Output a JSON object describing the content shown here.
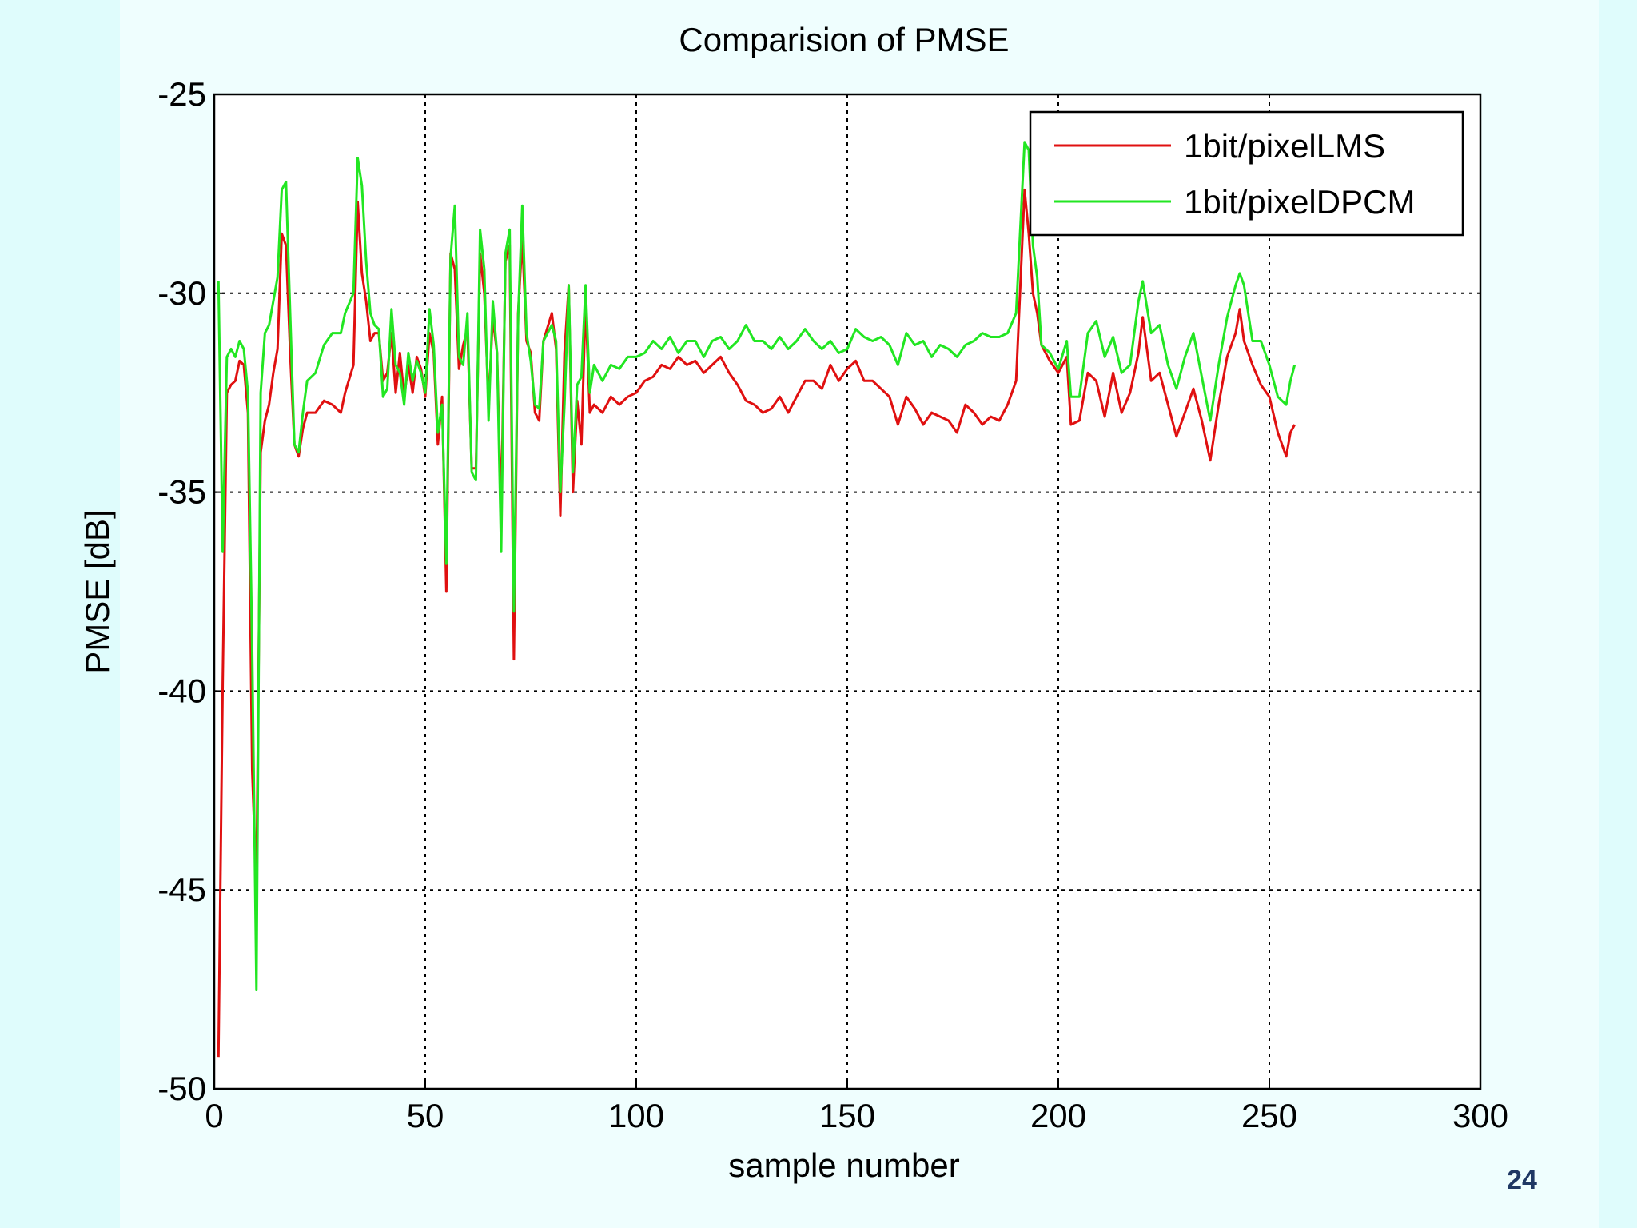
{
  "page_number": "24",
  "chart_data": {
    "type": "line",
    "title": "Comparision of PMSE",
    "xlabel": "sample number",
    "ylabel": "PMSE [dB]",
    "xlim": [
      0,
      300
    ],
    "ylim": [
      -50,
      -25
    ],
    "xticks": [
      0,
      50,
      100,
      150,
      200,
      250,
      300
    ],
    "yticks": [
      -50,
      -45,
      -40,
      -35,
      -30,
      -25
    ],
    "grid": true,
    "legend": "upper right",
    "x": [
      1,
      2,
      3,
      4,
      5,
      6,
      7,
      8,
      9,
      10,
      11,
      12,
      13,
      14,
      15,
      16,
      17,
      18,
      19,
      20,
      21,
      22,
      24,
      26,
      28,
      30,
      31,
      33,
      34,
      35,
      36,
      37,
      38,
      39,
      40,
      41,
      42,
      43,
      44,
      45,
      46,
      47,
      48,
      49,
      50,
      51,
      52,
      53,
      54,
      55,
      56,
      57,
      58,
      59,
      60,
      61,
      62,
      63,
      64,
      65,
      66,
      67,
      68,
      69,
      70,
      71,
      72,
      73,
      74,
      75,
      76,
      77,
      78,
      80,
      81,
      82,
      83,
      84,
      85,
      86,
      87,
      88,
      89,
      90,
      92,
      94,
      96,
      98,
      100,
      102,
      104,
      106,
      108,
      110,
      112,
      114,
      116,
      118,
      120,
      122,
      124,
      126,
      128,
      130,
      132,
      134,
      136,
      138,
      140,
      142,
      144,
      146,
      148,
      150,
      152,
      154,
      156,
      158,
      160,
      162,
      164,
      166,
      168,
      170,
      172,
      174,
      176,
      178,
      180,
      182,
      184,
      186,
      188,
      190,
      192,
      193,
      194,
      195,
      196,
      198,
      200,
      202,
      203,
      205,
      207,
      209,
      211,
      213,
      215,
      217,
      219,
      220,
      222,
      224,
      226,
      228,
      230,
      232,
      234,
      236,
      238,
      240,
      242,
      243,
      244,
      246,
      248,
      250,
      252,
      254,
      255,
      256
    ],
    "series": [
      {
        "name": "1bit/pixelLMS",
        "color": "#e01010",
        "values": [
          -49.2,
          -39.8,
          -32.5,
          -32.3,
          -32.2,
          -31.7,
          -31.8,
          -33,
          -42,
          -45,
          -34,
          -33.2,
          -32.8,
          -32,
          -31.4,
          -28.5,
          -28.8,
          -31.5,
          -33.8,
          -34.1,
          -33.4,
          -33,
          -33,
          -32.7,
          -32.8,
          -33,
          -32.5,
          -31.8,
          -27.7,
          -29.5,
          -30.2,
          -31.2,
          -31,
          -31,
          -32.2,
          -32,
          -31,
          -32.5,
          -31.5,
          -32.6,
          -31.8,
          -32.5,
          -31.6,
          -31.9,
          -32.6,
          -31,
          -31.5,
          -33.8,
          -32.6,
          -37.5,
          -29,
          -29.4,
          -31.9,
          -31.3,
          -30.9,
          -34.4,
          -34.4,
          -29,
          -30,
          -32.8,
          -30.6,
          -31.5,
          -35.6,
          -29.2,
          -28.8,
          -39.2,
          -30.5,
          -28.6,
          -31.2,
          -31.5,
          -33,
          -33.2,
          -31.2,
          -30.5,
          -31.4,
          -35.6,
          -31.5,
          -29.8,
          -35,
          -32.7,
          -33.8,
          -30.2,
          -33,
          -32.8,
          -33,
          -32.6,
          -32.8,
          -32.6,
          -32.5,
          -32.2,
          -32.1,
          -31.8,
          -31.9,
          -31.6,
          -31.8,
          -31.7,
          -32,
          -31.8,
          -31.6,
          -32,
          -32.3,
          -32.7,
          -32.8,
          -33,
          -32.9,
          -32.6,
          -33,
          -32.6,
          -32.2,
          -32.2,
          -32.4,
          -31.8,
          -32.2,
          -31.9,
          -31.7,
          -32.2,
          -32.2,
          -32.4,
          -32.6,
          -33.3,
          -32.6,
          -32.9,
          -33.3,
          -33,
          -33.1,
          -33.2,
          -33.5,
          -32.8,
          -33,
          -33.3,
          -33.1,
          -33.2,
          -32.8,
          -32.2,
          -27.4,
          -28.5,
          -30,
          -30.5,
          -31.3,
          -31.7,
          -32,
          -31.6,
          -33.3,
          -33.2,
          -32,
          -32.2,
          -33.1,
          -32,
          -33,
          -32.5,
          -31.5,
          -30.6,
          -32.2,
          -32,
          -32.8,
          -33.6,
          -33,
          -32.4,
          -33.2,
          -34.2,
          -32.8,
          -31.6,
          -31,
          -30.4,
          -31.2,
          -31.8,
          -32.3,
          -32.6,
          -33.5,
          -34.1,
          -33.5,
          -33.3
        ]
      },
      {
        "name": "1bit/pixelDPCM",
        "color": "#22e622",
        "values": [
          -29.7,
          -36.5,
          -31.6,
          -31.4,
          -31.6,
          -31.2,
          -31.4,
          -32.5,
          -39,
          -47.5,
          -32.5,
          -31,
          -30.8,
          -30.2,
          -29.6,
          -27.4,
          -27.2,
          -30.5,
          -33.8,
          -34,
          -33,
          -32.2,
          -32,
          -31.3,
          -31,
          -31,
          -30.5,
          -30,
          -26.6,
          -27.3,
          -29.2,
          -30.5,
          -30.8,
          -30.9,
          -32.6,
          -32.4,
          -30.4,
          -31.8,
          -32,
          -32.8,
          -31.5,
          -32.2,
          -31.7,
          -32,
          -32.5,
          -30.4,
          -31.3,
          -33.5,
          -32.8,
          -36.8,
          -29.1,
          -27.8,
          -31.6,
          -31.8,
          -30.5,
          -34.5,
          -34.7,
          -28.4,
          -29.4,
          -33.2,
          -30.2,
          -31.5,
          -36.5,
          -29,
          -28.4,
          -38,
          -30.6,
          -27.8,
          -31,
          -31.7,
          -32.8,
          -32.9,
          -31.2,
          -30.8,
          -31.2,
          -35,
          -32.8,
          -29.8,
          -34.5,
          -32.3,
          -32.1,
          -29.8,
          -32.5,
          -31.8,
          -32.2,
          -31.8,
          -31.9,
          -31.6,
          -31.6,
          -31.5,
          -31.2,
          -31.4,
          -31.1,
          -31.5,
          -31.2,
          -31.2,
          -31.6,
          -31.2,
          -31.1,
          -31.4,
          -31.2,
          -30.8,
          -31.2,
          -31.2,
          -31.4,
          -31.1,
          -31.4,
          -31.2,
          -30.9,
          -31.2,
          -31.4,
          -31.2,
          -31.5,
          -31.4,
          -30.9,
          -31.1,
          -31.2,
          -31.1,
          -31.3,
          -31.8,
          -31,
          -31.3,
          -31.2,
          -31.6,
          -31.3,
          -31.4,
          -31.6,
          -31.3,
          -31.2,
          -31,
          -31.1,
          -31.1,
          -31,
          -30.5,
          -26.2,
          -26.4,
          -28.8,
          -29.6,
          -31.3,
          -31.5,
          -31.9,
          -31.2,
          -32.6,
          -32.6,
          -31,
          -30.7,
          -31.6,
          -31.1,
          -32,
          -31.8,
          -30.2,
          -29.7,
          -31,
          -30.8,
          -31.8,
          -32.4,
          -31.6,
          -31,
          -32.1,
          -33.2,
          -31.8,
          -30.6,
          -29.8,
          -29.5,
          -29.8,
          -31.2,
          -31.2,
          -31.8,
          -32.6,
          -32.8,
          -32.2,
          -31.8
        ]
      }
    ]
  }
}
